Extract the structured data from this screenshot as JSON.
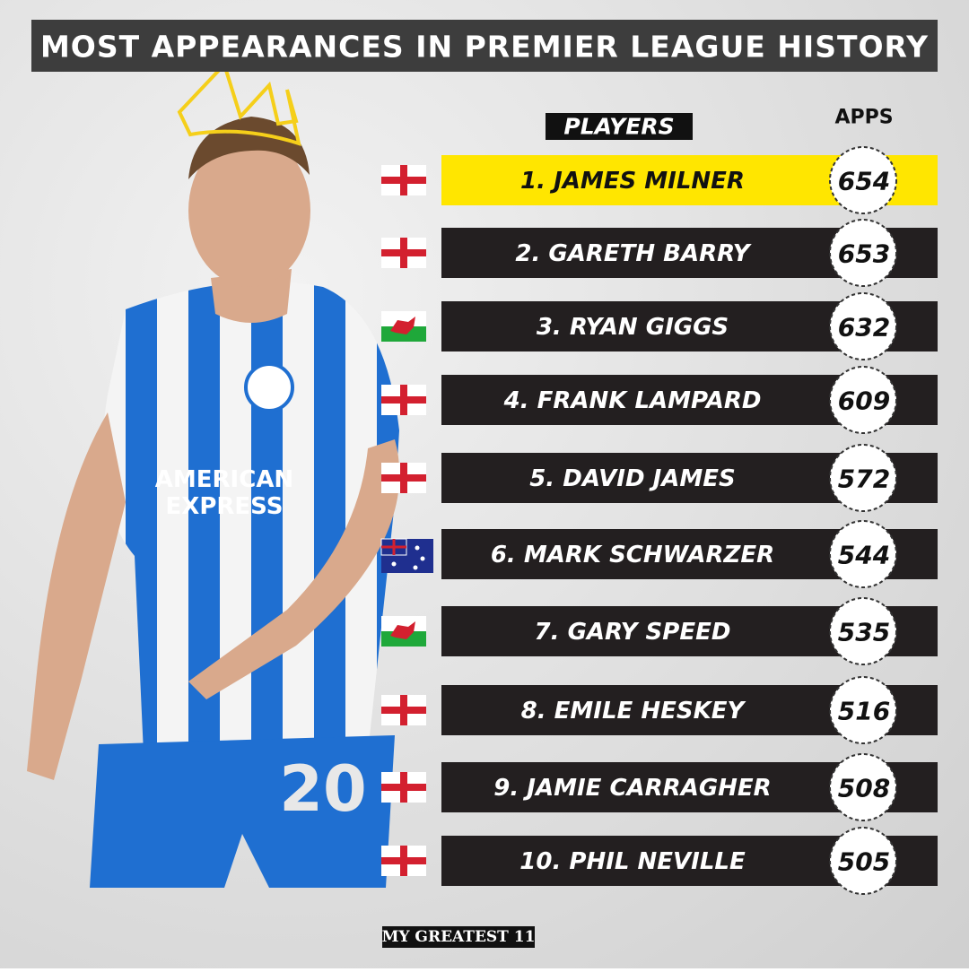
{
  "title": "MOST APPEARANCES IN PREMIER LEAGUE HISTORY",
  "headers": {
    "players": "PLAYERS",
    "apps": "APPS"
  },
  "rows": [
    {
      "player": "1. JAMES MILNER",
      "apps": 654
    },
    {
      "player": "2. GARETH BARRY",
      "apps": 653
    },
    {
      "player": "3. RYAN GIGGS",
      "apps": 632
    },
    {
      "player": "4. FRANK LAMPARD",
      "apps": 609
    },
    {
      "player": "5. DAVID JAMES",
      "apps": 572
    },
    {
      "player": "6. MARK SCHWARZER",
      "apps": 544
    },
    {
      "player": "7. GARY SPEED",
      "apps": 535
    },
    {
      "player": "8. EMILE HESKEY",
      "apps": 516
    },
    {
      "player": "9. JAMIE CARRAGHER",
      "apps": 508
    },
    {
      "player": "10. PHIL NEVILLE",
      "apps": 505
    }
  ],
  "credit": "MY GREATEST 11"
}
